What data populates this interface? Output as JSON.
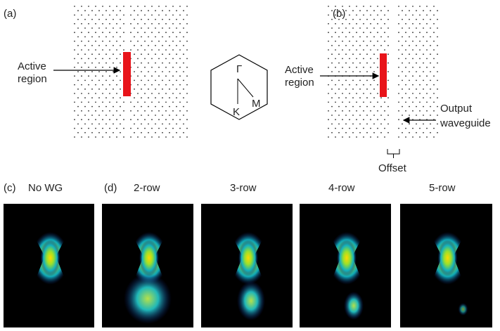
{
  "panel_a": {
    "label": "(a)",
    "annotation": [
      "Active",
      "region"
    ]
  },
  "brillouin_zone": {
    "gamma": "Γ",
    "k": "K",
    "m": "M"
  },
  "panel_b": {
    "label": "(b)",
    "annotation": [
      "Active",
      "region"
    ],
    "waveguide": [
      "Output",
      "waveguide"
    ],
    "offset": "Offset"
  },
  "panel_c": {
    "label": "(c)",
    "title": "No WG"
  },
  "panel_d": {
    "label": "(d)",
    "titles": [
      "2-row",
      "3-row",
      "4-row",
      "5-row"
    ]
  }
}
